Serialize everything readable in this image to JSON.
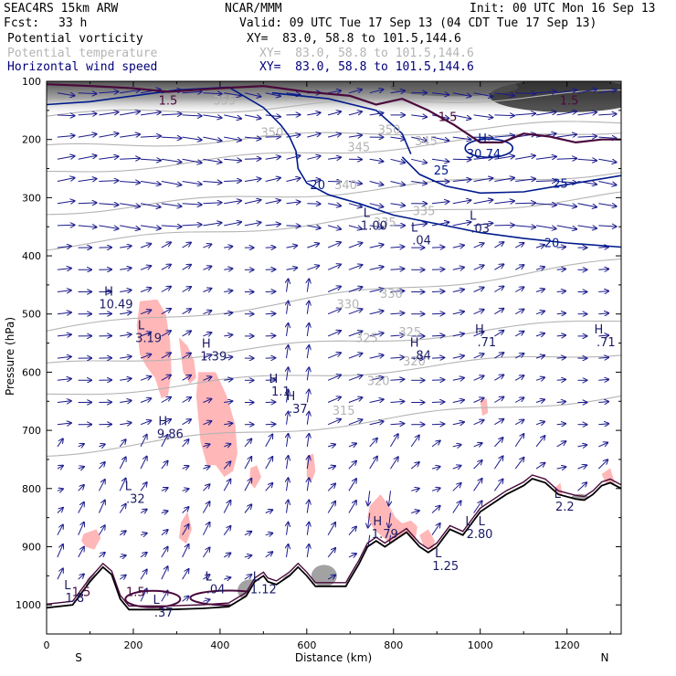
{
  "header": {
    "model": "SEAC4RS 15km ARW",
    "center": "NCAR/MMM",
    "init": "Init: 00 UTC Mon 16 Sep 13",
    "fcst_label": "Fcst:",
    "fcst_value": "33 h",
    "valid": "Valid: 09 UTC Tue 17 Sep 13 (04 CDT Tue 17 Sep 13)",
    "fields": [
      {
        "name": "Potential vorticity",
        "coords": "XY=  83.0, 58.8 to 101.5,144.6",
        "color": "#000000"
      },
      {
        "name": "Potential temperature",
        "coords": "XY=  83.0, 58.8 to 101.5,144.6",
        "color": "#b4b4b4"
      },
      {
        "name": "Horizontal wind speed",
        "coords": "XY=  83.0, 58.8 to 101.5,144.6",
        "color": "#00007a"
      }
    ]
  },
  "colors": {
    "theta": "#b4b4b4",
    "wind_contour": "#001a8c",
    "pv_contour": "#4a0a3c",
    "pv_shade": "#ffb7b7",
    "vectors": "#1a1a8c",
    "labels": "#1a1a66",
    "terrain": "#000000"
  },
  "chart_data": {
    "type": "vertical-cross-section",
    "xlabel": "Distance (km)",
    "ylabel": "Pressure (hPa)",
    "xlim": [
      0,
      1325
    ],
    "ylim": [
      1050,
      100
    ],
    "xticks": [
      0,
      200,
      400,
      600,
      800,
      1000,
      1200
    ],
    "yticks": [
      100,
      200,
      300,
      400,
      500,
      600,
      700,
      800,
      900,
      1000
    ],
    "x_end_labels": {
      "left": "S",
      "right": "N"
    },
    "terrain_profile": [
      [
        0,
        1005
      ],
      [
        60,
        1000
      ],
      [
        100,
        960
      ],
      [
        130,
        935
      ],
      [
        150,
        948
      ],
      [
        170,
        990
      ],
      [
        190,
        1008
      ],
      [
        230,
        1008
      ],
      [
        280,
        1008
      ],
      [
        360,
        1006
      ],
      [
        420,
        1003
      ],
      [
        460,
        985
      ],
      [
        480,
        960
      ],
      [
        500,
        950
      ],
      [
        510,
        960
      ],
      [
        530,
        965
      ],
      [
        560,
        950
      ],
      [
        580,
        935
      ],
      [
        600,
        950
      ],
      [
        620,
        968
      ],
      [
        660,
        968
      ],
      [
        690,
        968
      ],
      [
        700,
        955
      ],
      [
        720,
        930
      ],
      [
        740,
        900
      ],
      [
        760,
        890
      ],
      [
        780,
        900
      ],
      [
        800,
        890
      ],
      [
        830,
        875
      ],
      [
        860,
        900
      ],
      [
        880,
        910
      ],
      [
        900,
        900
      ],
      [
        930,
        870
      ],
      [
        960,
        880
      ],
      [
        980,
        860
      ],
      [
        1000,
        840
      ],
      [
        1020,
        830
      ],
      [
        1060,
        810
      ],
      [
        1100,
        795
      ],
      [
        1120,
        783
      ],
      [
        1150,
        790
      ],
      [
        1180,
        810
      ],
      [
        1220,
        818
      ],
      [
        1240,
        820
      ],
      [
        1260,
        810
      ],
      [
        1280,
        795
      ],
      [
        1300,
        790
      ],
      [
        1325,
        800
      ]
    ],
    "potential_temperature": {
      "levels": [
        315,
        320,
        325,
        330,
        335,
        340,
        345,
        350,
        355
      ],
      "labels": [
        {
          "text": "315",
          "x": 685,
          "p": 673
        },
        {
          "text": "320",
          "x": 765,
          "p": 622
        },
        {
          "text": "320",
          "x": 848,
          "p": 588
        },
        {
          "text": "325",
          "x": 738,
          "p": 548
        },
        {
          "text": "325",
          "x": 838,
          "p": 538
        },
        {
          "text": "330",
          "x": 695,
          "p": 490
        },
        {
          "text": "330",
          "x": 795,
          "p": 472
        },
        {
          "text": "335",
          "x": 780,
          "p": 350
        },
        {
          "text": "335",
          "x": 870,
          "p": 330
        },
        {
          "text": "340",
          "x": 690,
          "p": 285
        },
        {
          "text": "345",
          "x": 720,
          "p": 220
        },
        {
          "text": "345",
          "x": 875,
          "p": 210
        },
        {
          "text": "350",
          "x": 520,
          "p": 195
        },
        {
          "text": "350",
          "x": 790,
          "p": 190
        },
        {
          "text": "355",
          "x": 410,
          "p": 140
        }
      ]
    },
    "wind_speed": {
      "levels": [
        20,
        25
      ],
      "labels": [
        {
          "text": "20",
          "x": 625,
          "p": 285
        },
        {
          "text": "20",
          "x": 1165,
          "p": 385
        },
        {
          "text": "25",
          "x": 910,
          "p": 260
        },
        {
          "text": "25",
          "x": 1185,
          "p": 283
        },
        {
          "text": "H",
          "x": 1005,
          "p": 205
        },
        {
          "text": "30.74",
          "x": 1008,
          "p": 232
        }
      ]
    },
    "potential_vorticity": {
      "levels": [
        1.5
      ],
      "shade_threshold": 1.0,
      "labels": [
        {
          "text": "1.5",
          "x": 280,
          "p": 140
        },
        {
          "text": "1.5",
          "x": 925,
          "p": 168
        },
        {
          "text": "1.5",
          "x": 1205,
          "p": 140
        },
        {
          "text": "1.5",
          "x": 205,
          "p": 985
        },
        {
          "text": "1.5",
          "x": 80,
          "p": 985
        }
      ]
    },
    "extrema": [
      {
        "type": "H",
        "value": "10.49",
        "x": 160,
        "p": 490
      },
      {
        "type": "L",
        "value": "3.19",
        "x": 235,
        "p": 548
      },
      {
        "type": "H",
        "value": "1.39",
        "x": 385,
        "p": 580
      },
      {
        "type": "H",
        "value": "1.1",
        "x": 540,
        "p": 640
      },
      {
        "type": "H",
        "value": ".37",
        "x": 580,
        "p": 670
      },
      {
        "type": "H",
        "value": "9.86",
        "x": 285,
        "p": 713
      },
      {
        "type": "L",
        "value": "1.00",
        "x": 755,
        "p": 355
      },
      {
        "type": "L",
        "value": ".04",
        "x": 865,
        "p": 380
      },
      {
        "type": "L",
        "value": ".03",
        "x": 1000,
        "p": 360
      },
      {
        "type": "H",
        "value": ".84",
        "x": 865,
        "p": 578
      },
      {
        "type": "H",
        "value": ".71",
        "x": 1015,
        "p": 555
      },
      {
        "type": "H",
        "value": ".71",
        "x": 1290,
        "p": 555
      },
      {
        "type": "L",
        "value": ".32",
        "x": 205,
        "p": 825
      },
      {
        "type": "L",
        "value": ".04",
        "x": 390,
        "p": 980
      },
      {
        "type": "L",
        "value": ".37",
        "x": 270,
        "p": 1020
      },
      {
        "type": "L",
        "value": "1.12",
        "x": 500,
        "p": 980
      },
      {
        "type": "H",
        "value": "1.79",
        "x": 780,
        "p": 885
      },
      {
        "type": "L",
        "value": "1.25",
        "x": 920,
        "p": 940
      },
      {
        "type": "L",
        "value": "2.8",
        "x": 990,
        "p": 885
      },
      {
        "type": "L",
        "value": "0",
        "x": 1020,
        "p": 885
      },
      {
        "type": "L",
        "value": "1.8",
        "x": 65,
        "p": 995
      },
      {
        "type": "L",
        "value": "2.2",
        "x": 1195,
        "p": 838
      }
    ],
    "pv_shaded_regions": [
      [
        [
          215,
          478
        ],
        [
          255,
          475
        ],
        [
          275,
          500
        ],
        [
          285,
          548
        ],
        [
          288,
          600
        ],
        [
          280,
          640
        ],
        [
          265,
          645
        ],
        [
          250,
          610
        ],
        [
          230,
          590
        ],
        [
          215,
          570
        ],
        [
          208,
          520
        ]
      ],
      [
        [
          305,
          540
        ],
        [
          325,
          555
        ],
        [
          340,
          580
        ],
        [
          345,
          610
        ],
        [
          330,
          620
        ],
        [
          315,
          600
        ]
      ],
      [
        [
          350,
          600
        ],
        [
          390,
          600
        ],
        [
          415,
          640
        ],
        [
          435,
          690
        ],
        [
          440,
          740
        ],
        [
          430,
          770
        ],
        [
          410,
          780
        ],
        [
          390,
          760
        ],
        [
          370,
          760
        ],
        [
          355,
          720
        ],
        [
          350,
          680
        ],
        [
          345,
          640
        ]
      ],
      [
        [
          310,
          858
        ],
        [
          325,
          840
        ],
        [
          335,
          870
        ],
        [
          322,
          895
        ],
        [
          305,
          885
        ]
      ],
      [
        [
          85,
          878
        ],
        [
          115,
          870
        ],
        [
          125,
          885
        ],
        [
          110,
          905
        ],
        [
          90,
          900
        ],
        [
          80,
          890
        ]
      ],
      [
        [
          600,
          745
        ],
        [
          615,
          740
        ],
        [
          620,
          770
        ],
        [
          610,
          790
        ],
        [
          600,
          780
        ]
      ],
      [
        [
          470,
          765
        ],
        [
          485,
          760
        ],
        [
          495,
          780
        ],
        [
          480,
          800
        ],
        [
          468,
          790
        ]
      ],
      [
        [
          745,
          830
        ],
        [
          770,
          810
        ],
        [
          790,
          830
        ],
        [
          805,
          850
        ],
        [
          820,
          860
        ],
        [
          840,
          855
        ],
        [
          855,
          865
        ],
        [
          850,
          890
        ],
        [
          820,
          905
        ],
        [
          795,
          895
        ],
        [
          770,
          880
        ],
        [
          755,
          870
        ],
        [
          740,
          850
        ]
      ],
      [
        [
          1060,
          810
        ],
        [
          1085,
          800
        ],
        [
          1090,
          825
        ],
        [
          1075,
          840
        ],
        [
          1055,
          835
        ]
      ],
      [
        [
          860,
          880
        ],
        [
          880,
          870
        ],
        [
          895,
          890
        ],
        [
          890,
          905
        ],
        [
          870,
          900
        ]
      ],
      [
        [
          965,
          880
        ],
        [
          985,
          870
        ],
        [
          995,
          890
        ],
        [
          985,
          900
        ],
        [
          970,
          895
        ]
      ],
      [
        [
          1170,
          800
        ],
        [
          1185,
          790
        ],
        [
          1190,
          815
        ],
        [
          1175,
          825
        ]
      ],
      [
        [
          1280,
          775
        ],
        [
          1300,
          765
        ],
        [
          1310,
          790
        ],
        [
          1295,
          800
        ]
      ],
      [
        [
          1000,
          650
        ],
        [
          1015,
          645
        ],
        [
          1018,
          670
        ],
        [
          1005,
          675
        ]
      ]
    ]
  }
}
